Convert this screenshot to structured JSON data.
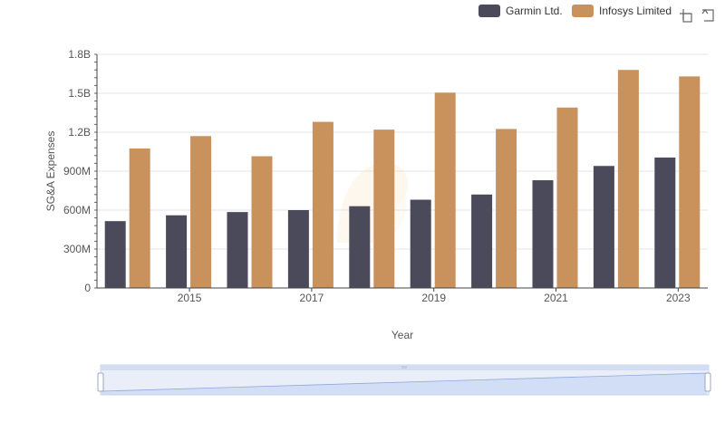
{
  "chart_data": {
    "type": "bar",
    "categories": [
      "2014",
      "2015",
      "2016",
      "2017",
      "2018",
      "2019",
      "2020",
      "2021",
      "2022",
      "2023"
    ],
    "tick_labels_x": [
      "2015",
      "2017",
      "2019",
      "2021",
      "2023"
    ],
    "series": [
      {
        "name": "Garmin Ltd.",
        "color": "#4a4a5a",
        "values": [
          515000000,
          560000000,
          585000000,
          600000000,
          630000000,
          680000000,
          720000000,
          830000000,
          940000000,
          1005000000
        ]
      },
      {
        "name": "Infosys Limited",
        "color": "#c9925c",
        "values": [
          1075000000,
          1170000000,
          1015000000,
          1280000000,
          1220000000,
          1505000000,
          1225000000,
          1390000000,
          1680000000,
          1630000000
        ]
      }
    ],
    "xlabel": "Year",
    "ylabel": "SG&A Expenses",
    "ylim": [
      0,
      1800000000
    ],
    "yticks": [
      {
        "value": 0,
        "label": "0"
      },
      {
        "value": 300000000,
        "label": "300M"
      },
      {
        "value": 600000000,
        "label": "600M"
      },
      {
        "value": 900000000,
        "label": "900M"
      },
      {
        "value": 1200000000,
        "label": "1.2B"
      },
      {
        "value": 1500000000,
        "label": "1.5B"
      },
      {
        "value": 1800000000,
        "label": "1.8B"
      }
    ],
    "grid": true,
    "legend_position": "top-right",
    "icons": [
      "zoom-icon",
      "restore-icon"
    ]
  }
}
